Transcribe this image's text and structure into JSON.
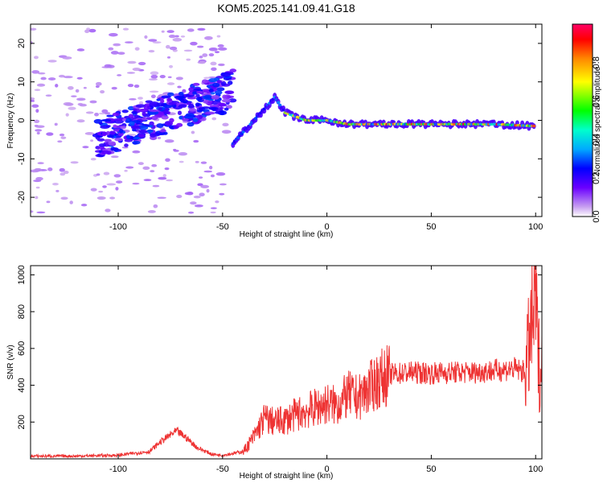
{
  "title": "KOM5.2025.141.09.41.G18",
  "chart_data": [
    {
      "type": "heatmap",
      "xlabel": "Height of straight line (km)",
      "ylabel": "Frequency (Hz)",
      "xlim": [
        -142,
        103
      ],
      "ylim": [
        -25,
        25
      ],
      "xticks": [
        -100,
        -50,
        0,
        50,
        100
      ],
      "yticks": [
        -20,
        -10,
        0,
        10,
        20
      ],
      "colorbar": {
        "label": "Normalized spectral amplitude",
        "range": [
          0,
          1
        ],
        "ticks": [
          0.0,
          0.2,
          0.4,
          0.6,
          0.8
        ]
      },
      "ridge": [
        {
          "x": -45,
          "y": -6
        },
        {
          "x": -40,
          "y": -3
        },
        {
          "x": -35,
          "y": 0
        },
        {
          "x": -30,
          "y": 3
        },
        {
          "x": -25,
          "y": 6
        },
        {
          "x": -20,
          "y": 2
        },
        {
          "x": -15,
          "y": 1
        },
        {
          "x": -10,
          "y": 0
        },
        {
          "x": -5,
          "y": 0
        },
        {
          "x": 0,
          "y": 0
        },
        {
          "x": 10,
          "y": -1
        },
        {
          "x": 20,
          "y": -1
        },
        {
          "x": 40,
          "y": -1
        },
        {
          "x": 60,
          "y": -1
        },
        {
          "x": 80,
          "y": -1
        },
        {
          "x": 100,
          "y": -1.5
        }
      ],
      "scatter_region": {
        "x": [
          -140,
          -45
        ],
        "y_center_start": -5,
        "y_center_end": 8
      }
    },
    {
      "type": "line",
      "xlabel": "Height of straight line (km)",
      "ylabel": "SNR (v/v)",
      "xlim": [
        -142,
        103
      ],
      "ylim": [
        0,
        1050
      ],
      "xticks": [
        -100,
        -50,
        0,
        50,
        100
      ],
      "yticks": [
        200,
        400,
        600,
        800,
        1000
      ],
      "color": "#ee3333",
      "series": [
        {
          "x": [
            -142,
            -120,
            -100,
            -85,
            -80,
            -75,
            -72,
            -68,
            -62,
            -55,
            -50,
            -40,
            -35,
            -30,
            -25,
            -20,
            -15,
            -10,
            -5,
            0,
            5,
            10,
            15,
            20,
            25,
            30,
            40,
            50,
            60,
            70,
            80,
            90,
            95,
            98,
            100,
            101,
            102,
            103
          ],
          "values": [
            15,
            15,
            20,
            40,
            90,
            130,
            150,
            120,
            60,
            25,
            20,
            40,
            120,
            220,
            200,
            210,
            240,
            260,
            280,
            300,
            290,
            350,
            330,
            380,
            430,
            460,
            470,
            465,
            470,
            470,
            480,
            490,
            470,
            700,
            900,
            600,
            480,
            500
          ]
        }
      ]
    }
  ]
}
